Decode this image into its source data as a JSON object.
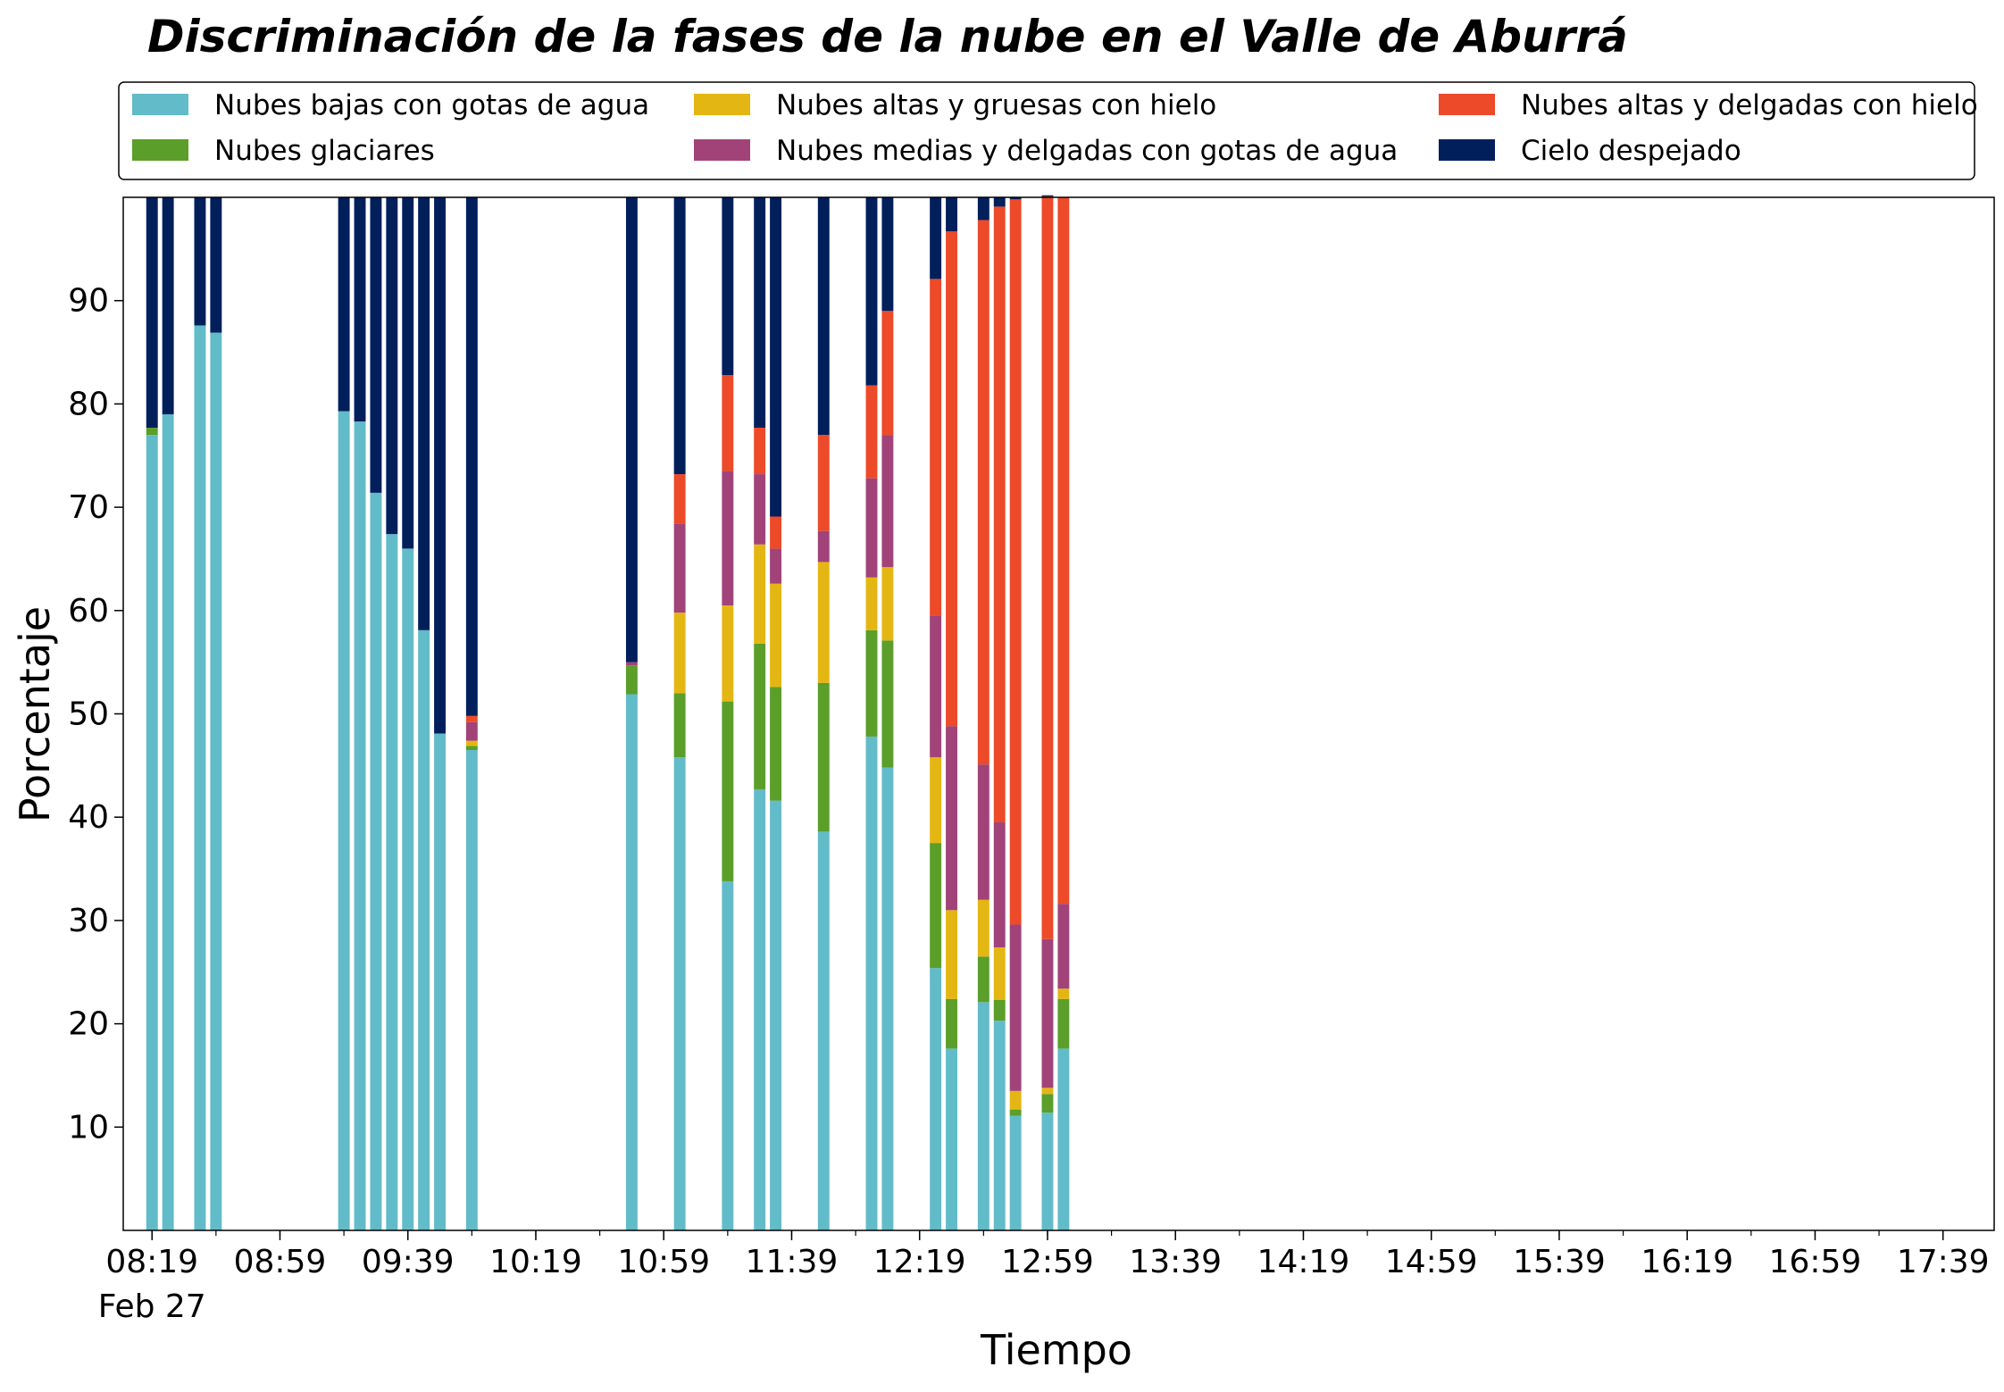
{
  "chart_data": {
    "type": "bar",
    "stacked": true,
    "title": "Discriminación de la fases de la nube en el Valle de Aburrá",
    "xlabel": "Tiempo",
    "ylabel": "Porcentaje",
    "ylim": [
      0,
      100
    ],
    "yticks": [
      10,
      20,
      30,
      40,
      50,
      60,
      70,
      80,
      90
    ],
    "xticks": [
      {
        "t": "08:19",
        "sub": "Feb 27"
      },
      {
        "t": "08:59"
      },
      {
        "t": "09:39"
      },
      {
        "t": "10:19"
      },
      {
        "t": "10:59"
      },
      {
        "t": "11:39"
      },
      {
        "t": "12:19"
      },
      {
        "t": "12:59"
      },
      {
        "t": "13:39"
      },
      {
        "t": "14:19"
      },
      {
        "t": "14:59"
      },
      {
        "t": "15:39"
      },
      {
        "t": "16:19"
      },
      {
        "t": "16:59"
      },
      {
        "t": "17:39"
      }
    ],
    "legend_position": "top",
    "x": [
      "08:19",
      "08:24",
      "08:34",
      "08:39",
      "09:19",
      "09:24",
      "09:29",
      "09:34",
      "09:39",
      "09:44",
      "09:49",
      "09:59",
      "10:49",
      "11:04",
      "11:19",
      "11:29",
      "11:34",
      "11:49",
      "12:04",
      "12:09",
      "12:24",
      "12:29",
      "12:39",
      "12:44",
      "12:49",
      "12:59",
      "13:04",
      "13:09"
    ],
    "series": [
      {
        "name": "Nubes bajas con gotas de agua",
        "color": "#62BBC8",
        "values": [
          77.0,
          79.0,
          87.6,
          86.9,
          79.3,
          78.3,
          71.4,
          67.4,
          66.0,
          58.1,
          48.1,
          46.5,
          51.9,
          45.8,
          33.8,
          42.7,
          41.6,
          38.6,
          47.8,
          44.8,
          25.4,
          17.6,
          22.1,
          20.3,
          11.1,
          11.4,
          17.6,
          0
        ]
      },
      {
        "name": "Nubes glaciares",
        "color": "#5B9E29",
        "values": [
          0.7,
          0,
          0,
          0,
          0,
          0,
          0,
          0,
          0,
          0,
          0,
          0.4,
          2.8,
          6.2,
          17.4,
          14.1,
          11.0,
          14.4,
          10.3,
          12.3,
          12.1,
          4.8,
          4.4,
          2.0,
          0.6,
          1.8,
          4.8,
          0
        ]
      },
      {
        "name": "Nubes altas y gruesas con hielo",
        "color": "#E4B613",
        "values": [
          0,
          0,
          0,
          0,
          0,
          0,
          0,
          0,
          0,
          0,
          0,
          0.5,
          0,
          7.8,
          9.3,
          9.6,
          10.0,
          11.7,
          5.1,
          7.1,
          8.3,
          8.6,
          5.5,
          5.1,
          1.8,
          0.6,
          1.0,
          0
        ]
      },
      {
        "name": "Nubes medias y delgadas con gotas de agua",
        "color": "#A14378",
        "values": [
          0,
          0,
          0,
          0,
          0,
          0,
          0,
          0,
          0,
          0,
          0,
          1.8,
          0.3,
          8.6,
          13.0,
          6.8,
          3.4,
          3.0,
          9.6,
          12.8,
          13.7,
          17.8,
          13.1,
          12.1,
          16.1,
          14.4,
          8.2,
          0
        ]
      },
      {
        "name": "Nubes altas y delgadas con hielo",
        "color": "#EC4A29",
        "values": [
          0,
          0,
          0,
          0,
          0,
          0,
          0,
          0,
          0,
          0,
          0,
          0.6,
          0,
          4.8,
          9.3,
          4.5,
          3.1,
          9.3,
          9.0,
          12.0,
          32.6,
          47.9,
          52.7,
          59.6,
          70.2,
          71.9,
          68.4,
          0
        ]
      },
      {
        "name": "Cielo despejado",
        "color": "#001F5B",
        "values": [
          22.3,
          21.0,
          12.4,
          13.1,
          20.7,
          21.7,
          28.6,
          32.6,
          34.0,
          41.9,
          51.9,
          50.2,
          45.0,
          26.8,
          17.2,
          22.3,
          30.9,
          23.0,
          18.2,
          11.0,
          7.9,
          3.3,
          2.2,
          0.9,
          0.2,
          0.1,
          0,
          0
        ]
      }
    ]
  }
}
